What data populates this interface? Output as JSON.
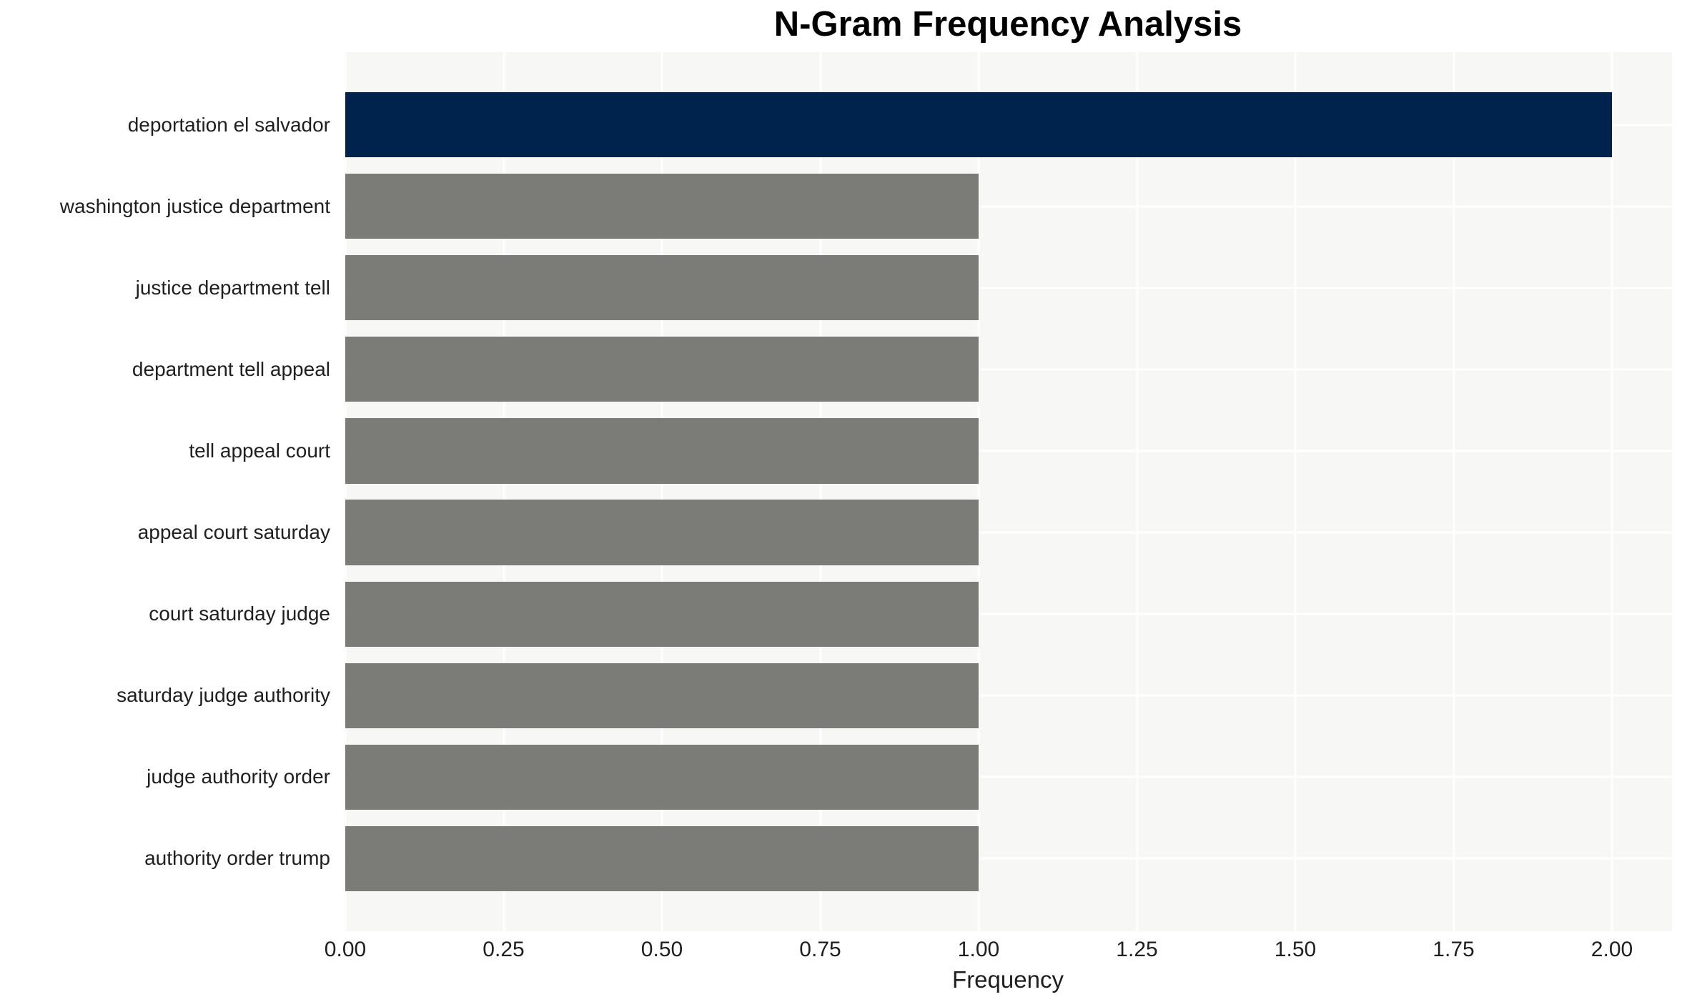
{
  "chart_data": {
    "type": "bar",
    "orientation": "horizontal",
    "title": "N-Gram Frequency Analysis",
    "xlabel": "Frequency",
    "ylabel": "",
    "categories": [
      "deportation el salvador",
      "washington justice department",
      "justice department tell",
      "department tell appeal",
      "tell appeal court",
      "appeal court saturday",
      "court saturday judge",
      "saturday judge authority",
      "judge authority order",
      "authority order trump"
    ],
    "values": [
      2,
      1,
      1,
      1,
      1,
      1,
      1,
      1,
      1,
      1
    ],
    "xticks": [
      0.0,
      0.25,
      0.5,
      0.75,
      1.0,
      1.25,
      1.5,
      1.75,
      2.0
    ],
    "xtick_labels": [
      "0.00",
      "0.25",
      "0.50",
      "0.75",
      "1.00",
      "1.25",
      "1.50",
      "1.75",
      "2.00"
    ],
    "xlim": [
      0,
      2.097
    ],
    "grid": true,
    "legend": false,
    "colors": {
      "highlight_bar": "#00234d",
      "default_bar": "#7b7b77",
      "plot_background": "#f7f7f5",
      "gridline": "#ffffff",
      "tick_text": "#1f1f1f",
      "title_text": "#000000"
    }
  }
}
